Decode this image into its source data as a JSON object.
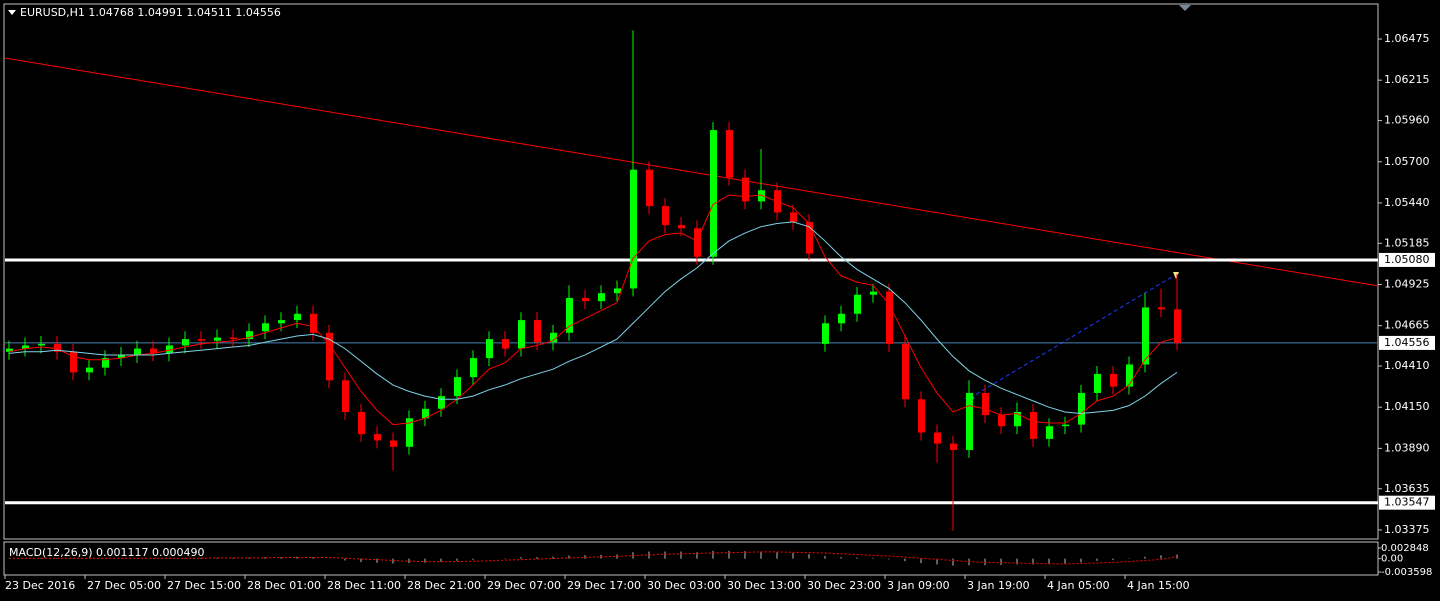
{
  "chart_data": {
    "type": "candlestick",
    "header": "EURUSD,H1  1.04768 1.04991 1.04511 1.04556",
    "open": [
      1.045,
      1.0452,
      1.0454,
      1.0455,
      1.045,
      1.0437,
      1.044,
      1.0446,
      1.0448,
      1.0452,
      1.0449,
      1.0454,
      1.0458,
      1.0457,
      1.0459,
      1.0458,
      1.0463,
      1.0468,
      1.047,
      1.0474,
      1.0462,
      1.0432,
      1.0412,
      1.0398,
      1.0394,
      1.039,
      1.0408,
      1.0414,
      1.0422,
      1.0434,
      1.0446,
      1.0458,
      1.0452,
      1.047,
      1.0456,
      1.0462,
      1.0484,
      1.0482,
      1.0487,
      1.049,
      1.0565,
      1.0542,
      1.053,
      1.0528,
      1.051,
      1.059,
      1.056,
      1.0545,
      1.0552,
      1.0538,
      1.0532,
      1.0455,
      1.0468,
      1.0474,
      1.0486,
      1.0488,
      1.0455,
      1.042,
      1.0399,
      1.0392,
      1.0388,
      1.0424,
      1.041,
      1.0403,
      1.0412,
      1.0395,
      1.0403,
      1.0404,
      1.0424,
      1.0436,
      1.0428,
      1.0442,
      1.0478,
      1.04768
    ],
    "high": [
      1.0457,
      1.0459,
      1.046,
      1.046,
      1.0455,
      1.0445,
      1.0451,
      1.0453,
      1.0457,
      1.0457,
      1.0459,
      1.0463,
      1.0463,
      1.0464,
      1.0464,
      1.0468,
      1.0473,
      1.0475,
      1.0479,
      1.0479,
      1.0467,
      1.0437,
      1.0417,
      1.0403,
      1.0399,
      1.0413,
      1.0419,
      1.0427,
      1.0439,
      1.0451,
      1.0463,
      1.0463,
      1.0475,
      1.0475,
      1.0467,
      1.0492,
      1.0489,
      1.0492,
      1.0495,
      1.0653,
      1.057,
      1.0547,
      1.0535,
      1.0533,
      1.0595,
      1.0595,
      1.0565,
      1.0578,
      1.0557,
      1.0543,
      1.0537,
      1.0473,
      1.0479,
      1.0491,
      1.0493,
      1.0493,
      1.046,
      1.0425,
      1.0404,
      1.0397,
      1.0432,
      1.0429,
      1.0415,
      1.0418,
      1.0417,
      1.0408,
      1.0409,
      1.0429,
      1.0441,
      1.0441,
      1.0447,
      1.0487,
      1.049,
      1.04991
    ],
    "low": [
      1.0445,
      1.0447,
      1.0449,
      1.0445,
      1.0432,
      1.0432,
      1.0435,
      1.0441,
      1.0443,
      1.0444,
      1.0444,
      1.0449,
      1.0452,
      1.0452,
      1.0453,
      1.0453,
      1.0458,
      1.0463,
      1.0465,
      1.0457,
      1.0427,
      1.0407,
      1.0393,
      1.0389,
      1.0375,
      1.0385,
      1.0403,
      1.0409,
      1.0417,
      1.0429,
      1.0441,
      1.0447,
      1.0447,
      1.0451,
      1.0451,
      1.0457,
      1.0477,
      1.0477,
      1.0482,
      1.0485,
      1.0537,
      1.0525,
      1.0523,
      1.0505,
      1.0505,
      1.0555,
      1.054,
      1.054,
      1.0533,
      1.0527,
      1.0508,
      1.045,
      1.0463,
      1.0469,
      1.0481,
      1.045,
      1.0415,
      1.0394,
      1.038,
      1.0337,
      1.0383,
      1.0405,
      1.0398,
      1.0398,
      1.039,
      1.039,
      1.0398,
      1.0399,
      1.0419,
      1.0423,
      1.0423,
      1.0437,
      1.0472,
      1.04511
    ],
    "close": [
      1.0452,
      1.0454,
      1.0455,
      1.045,
      1.0437,
      1.044,
      1.0446,
      1.0448,
      1.0452,
      1.0449,
      1.0454,
      1.0458,
      1.0457,
      1.0459,
      1.0458,
      1.0463,
      1.0468,
      1.047,
      1.0474,
      1.0462,
      1.0432,
      1.0412,
      1.0398,
      1.0394,
      1.039,
      1.0408,
      1.0414,
      1.0422,
      1.0434,
      1.0446,
      1.0458,
      1.0452,
      1.047,
      1.0456,
      1.0462,
      1.0484,
      1.0482,
      1.0487,
      1.049,
      1.0565,
      1.0542,
      1.053,
      1.0528,
      1.051,
      1.059,
      1.056,
      1.0545,
      1.0552,
      1.0538,
      1.0532,
      1.0512,
      1.0468,
      1.0474,
      1.0486,
      1.0488,
      1.0455,
      1.042,
      1.0399,
      1.0392,
      1.0388,
      1.0424,
      1.041,
      1.0403,
      1.0412,
      1.0395,
      1.0403,
      1.0404,
      1.0424,
      1.0436,
      1.0428,
      1.0442,
      1.0478,
      1.04768,
      1.04556
    ],
    "ma_fast": [
      1.045,
      1.0452,
      1.0453,
      1.0452,
      1.0447,
      1.0445,
      1.0445,
      1.0446,
      1.0448,
      1.0449,
      1.0451,
      1.0453,
      1.0455,
      1.0456,
      1.0457,
      1.0459,
      1.0462,
      1.0465,
      1.0468,
      1.0466,
      1.0455,
      1.044,
      1.0425,
      1.0413,
      1.0404,
      1.0405,
      1.0408,
      1.0413,
      1.042,
      1.0429,
      1.0439,
      1.0443,
      1.0452,
      1.0454,
      1.0457,
      1.0466,
      1.0471,
      1.0476,
      1.0481,
      1.0509,
      1.052,
      1.0524,
      1.0525,
      1.052,
      1.0543,
      1.0549,
      1.0548,
      1.0549,
      1.0545,
      1.0541,
      1.0531,
      1.051,
      1.0498,
      1.0494,
      1.0492,
      1.048,
      1.046,
      1.044,
      1.0424,
      1.0412,
      1.0416,
      1.0414,
      1.041,
      1.0411,
      1.0406,
      1.0405,
      1.0405,
      1.0411,
      1.0419,
      1.0422,
      1.0429,
      1.0445,
      1.0456,
      1.0459
    ],
    "ma_slow": [
      1.0449,
      1.045,
      1.045,
      1.0451,
      1.045,
      1.0449,
      1.0448,
      1.0448,
      1.0448,
      1.0448,
      1.0449,
      1.045,
      1.0451,
      1.0452,
      1.0453,
      1.0454,
      1.0456,
      1.0458,
      1.046,
      1.0461,
      1.0458,
      1.0452,
      1.0444,
      1.0436,
      1.0429,
      1.0425,
      1.0422,
      1.042,
      1.042,
      1.0422,
      1.0426,
      1.0429,
      1.0433,
      1.0436,
      1.0439,
      1.0444,
      1.0448,
      1.0453,
      1.0458,
      1.0468,
      1.0478,
      1.0488,
      1.0496,
      1.0503,
      1.0512,
      1.052,
      1.0525,
      1.0529,
      1.0531,
      1.0532,
      1.0529,
      1.052,
      1.051,
      1.0502,
      1.0496,
      1.049,
      1.0481,
      1.047,
      1.0458,
      1.0447,
      1.0438,
      1.0432,
      1.0427,
      1.0423,
      1.0419,
      1.0415,
      1.0412,
      1.0411,
      1.0412,
      1.0413,
      1.0416,
      1.0422,
      1.043,
      1.0437
    ],
    "bull_color": "#00ff00",
    "bear_color": "#ff0000",
    "ma_fast_color": "#ff0000",
    "ma_slow_color": "#7fd4e8",
    "ylim": [
      1.0669,
      1.03324
    ],
    "yticks": [
      1.06475,
      1.06215,
      {
        "value": 1.0596,
        "label": "1.05960"
      },
      {
        "value": 1.057,
        "label": "1.05700"
      },
      {
        "value": 1.0544,
        "label": "1.05440"
      },
      1.05185,
      1.04925,
      1.04665,
      {
        "value": 1.0441,
        "label": "1.04410"
      },
      {
        "value": 1.0415,
        "label": "1.04150"
      },
      {
        "value": 1.0389,
        "label": "1.03890"
      },
      1.03635,
      1.03375
    ],
    "levels": [
      {
        "value": 1.0508,
        "label": "1.05080",
        "color": "#ffffff"
      },
      {
        "value": 1.03547,
        "label": "1.03547",
        "color": "#ffffff"
      },
      {
        "value": 1.04556,
        "label": "1.04556",
        "color": "#4682b4"
      }
    ],
    "trendline": {
      "values": [
        1.06355,
        1.04916
      ],
      "color": "#ff0000"
    },
    "xlabels": [
      "23 Dec 2016",
      "27 Dec 05:00",
      "27 Dec 15:00",
      "28 Dec 01:00",
      "28 Dec 11:00",
      "28 Dec 21:00",
      "29 Dec 07:00",
      "29 Dec 17:00",
      "30 Dec 03:00",
      "30 Dec 13:00",
      "30 Dec 23:00",
      "3 Jan 09:00",
      "3 Jan 19:00",
      "4 Jan 05:00",
      "4 Jan 15:00"
    ],
    "macd": {
      "label": "MACD(12,26,9) 0.001117 0.000490",
      "ylim": [
        -0.003598,
        0.002848
      ],
      "yticks": [
        0.002848,
        {
          "value": 0,
          "label": "0.00"
        },
        -0.003598
      ],
      "color": "#c0c0c0",
      "signal_color": "#ff0000",
      "values": [
        0.0001,
        0.0001,
        0.0002,
        0.0002,
        0.0001,
        0.0,
        0.0,
        0.0,
        0.0001,
        0.0001,
        0.0001,
        0.0002,
        0.0002,
        0.0002,
        0.0002,
        0.0003,
        0.0004,
        0.0004,
        0.0005,
        0.0004,
        0.0,
        -0.0005,
        -0.0009,
        -0.0011,
        -0.0013,
        -0.0012,
        -0.0011,
        -0.0009,
        -0.0006,
        -0.0003,
        0.0,
        0.0001,
        0.0004,
        0.0004,
        0.0005,
        0.0008,
        0.0009,
        0.001,
        0.0011,
        0.0017,
        0.0019,
        0.0019,
        0.0019,
        0.0017,
        0.0021,
        0.0021,
        0.002,
        0.0019,
        0.0017,
        0.0015,
        0.0012,
        0.0007,
        0.0004,
        0.0003,
        0.0002,
        -0.0002,
        -0.0007,
        -0.0012,
        -0.0016,
        -0.0019,
        -0.0018,
        -0.0018,
        -0.0017,
        -0.0016,
        -0.0016,
        -0.0015,
        -0.0013,
        -0.001,
        -0.0006,
        -0.0004,
        -0.0001,
        0.0005,
        0.0009,
        0.001117
      ],
      "signal": [
        0.0001,
        0.0001,
        0.0001,
        0.0001,
        0.0001,
        0.0001,
        0.0001,
        0.0001,
        0.0001,
        0.0001,
        0.0001,
        0.0001,
        0.0001,
        0.0002,
        0.0002,
        0.0002,
        0.0002,
        0.0003,
        0.0003,
        0.0003,
        0.0003,
        0.0001,
        -0.0001,
        -0.0003,
        -0.0005,
        -0.0007,
        -0.0008,
        -0.0008,
        -0.0008,
        -0.0007,
        -0.0006,
        -0.0004,
        -0.0003,
        -0.0001,
        0.0,
        0.0002,
        0.0003,
        0.0005,
        0.0006,
        0.0008,
        0.001,
        0.0012,
        0.0013,
        0.0014,
        0.0015,
        0.0016,
        0.0017,
        0.0018,
        0.0018,
        0.0017,
        0.0016,
        0.0015,
        0.0013,
        0.0011,
        0.0009,
        0.0007,
        0.0004,
        0.0001,
        -0.0002,
        -0.0005,
        -0.0008,
        -0.001,
        -0.0011,
        -0.0012,
        -0.0013,
        -0.0014,
        -0.0014,
        -0.0013,
        -0.0012,
        -0.001,
        -0.0008,
        -0.0005,
        -0.0002,
        0.00049
      ]
    }
  }
}
